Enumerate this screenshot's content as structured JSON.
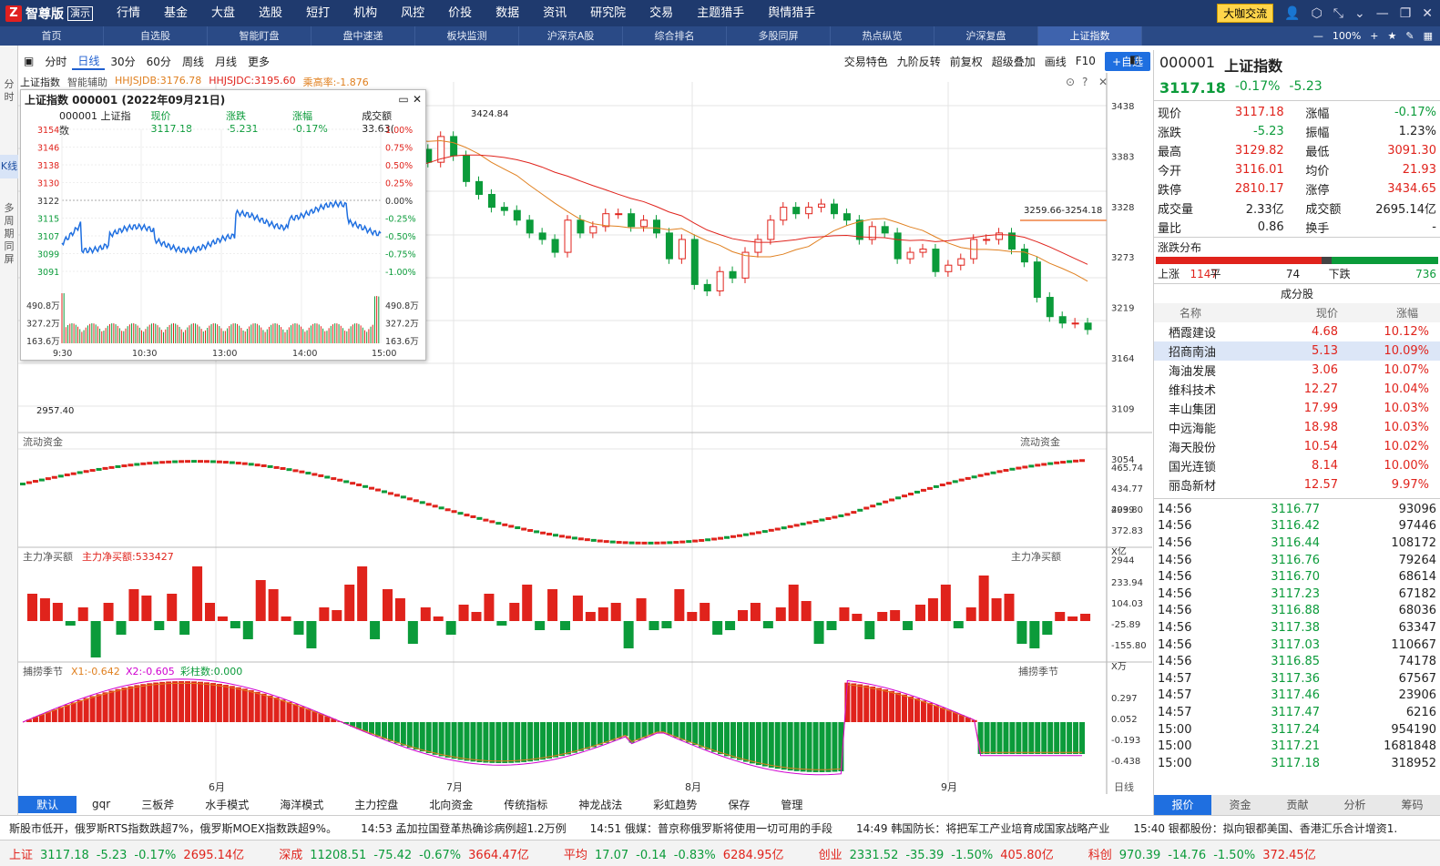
{
  "app": {
    "brand": "智尊版",
    "demo": "演示"
  },
  "menu": [
    "行情",
    "基金",
    "大盘",
    "选股",
    "短打",
    "机构",
    "风控",
    "价投",
    "数据",
    "资讯",
    "研究院",
    "交易",
    "主题猎手",
    "舆情猎手"
  ],
  "topright": {
    "cafe": "大咖交流"
  },
  "tabs": [
    "首页",
    "自选股",
    "智能盯盘",
    "盘中速递",
    "板块监测",
    "沪深京A股",
    "综合排名",
    "多股同屏",
    "热点纵览",
    "沪深复盘",
    "上证指数"
  ],
  "zoom": "100%",
  "sidebar": [
    "分时",
    "K线",
    "多周期同屏"
  ],
  "periods": [
    "分时",
    "日线",
    "30分",
    "60分",
    "周线",
    "月线",
    "更多"
  ],
  "righttools": [
    "交易特色",
    "九阶反转",
    "前复权",
    "超级叠加",
    "画线",
    "F10",
    "+自选"
  ],
  "info": {
    "name": "上证指数",
    "assist": "智能辅助",
    "jdb": "HHJSJDB:3176.78",
    "jdc": "HHJSJDC:3195.60",
    "gao": "乘高率:-1.876"
  },
  "price_axis": [
    "3438",
    "3383",
    "3328",
    "3273",
    "3219",
    "3164",
    "3109",
    "3054",
    "2999",
    "2944"
  ],
  "high_mark": "3424.84",
  "low_mark": "2957.40",
  "range_mark": "3259.66-3254.18",
  "ind1": {
    "title": "流动资金",
    "axis": [
      "465.74",
      "434.77",
      "403.80",
      "372.83",
      "X亿"
    ]
  },
  "ind2": {
    "title": "主力净买额",
    "value": "主力净买额:533427",
    "axis": [
      "233.94",
      "104.03",
      "-25.89",
      "-155.80",
      "X万"
    ]
  },
  "ind3": {
    "title": "捕捞季节",
    "x1": "X1:-0.642",
    "x2": "X2:-0.605",
    "bar": "彩柱数:0.000",
    "axis": [
      "0.297",
      "0.052",
      "-0.193",
      "-0.438"
    ]
  },
  "months": [
    "6月",
    "7月",
    "8月",
    "9月"
  ],
  "daylabel": "日线",
  "popup": {
    "title": "上证指数 000001 (2022年09月21日)",
    "code": "000001 上证指数",
    "now": "现价 3117.18",
    "chg": "涨跌 -5.231",
    "pct": "涨幅 -0.17%",
    "amt": "成交额 33.63(",
    "left_axis": [
      "3154",
      "3146",
      "3138",
      "3130",
      "3122",
      "3115",
      "3107",
      "3099",
      "3091"
    ],
    "right_axis": [
      "1.00%",
      "0.75%",
      "0.50%",
      "0.25%",
      "0.00%",
      "-0.25%",
      "-0.50%",
      "-0.75%",
      "-1.00%"
    ],
    "vol_axis": [
      "490.8万",
      "327.2万",
      "163.6万"
    ],
    "times": [
      "9:30",
      "10:30",
      "13:00",
      "14:00",
      "15:00"
    ]
  },
  "quote": {
    "code": "000001",
    "name": "上证指数",
    "price": "3117.18",
    "pct": "-0.17%",
    "chg": "-5.23",
    "rows": [
      [
        "现价",
        "3117.18",
        "涨幅",
        "-0.17%"
      ],
      [
        "涨跌",
        "-5.23",
        "振幅",
        "1.23%"
      ],
      [
        "最高",
        "3129.82",
        "最低",
        "3091.30"
      ],
      [
        "今开",
        "3116.01",
        "均价",
        "21.93"
      ],
      [
        "跌停",
        "2810.17",
        "涨停",
        "3434.65"
      ],
      [
        "成交量",
        "2.33亿",
        "成交额",
        "2695.14亿"
      ],
      [
        "量比",
        "0.86",
        "换手",
        "-"
      ]
    ],
    "dist_title": "涨跌分布",
    "up_label": "上涨",
    "up": "1147",
    "flat_label": "平",
    "flat": "74",
    "down_label": "下跌",
    "down": "736",
    "comp_title": "成分股",
    "comp_headers": [
      "名称",
      "现价",
      "涨幅"
    ],
    "comps": [
      [
        "栖霞建设",
        "4.68",
        "10.12%"
      ],
      [
        "招商南油",
        "5.13",
        "10.09%"
      ],
      [
        "海油发展",
        "3.06",
        "10.07%"
      ],
      [
        "维科技术",
        "12.27",
        "10.04%"
      ],
      [
        "丰山集团",
        "17.99",
        "10.03%"
      ],
      [
        "中远海能",
        "18.98",
        "10.03%"
      ],
      [
        "海天股份",
        "10.54",
        "10.02%"
      ],
      [
        "国光连锁",
        "8.14",
        "10.00%"
      ],
      [
        "丽岛新材",
        "12.57",
        "9.97%"
      ]
    ],
    "ticks": [
      [
        "14:56",
        "3116.77",
        "93096"
      ],
      [
        "14:56",
        "3116.42",
        "97446"
      ],
      [
        "14:56",
        "3116.44",
        "108172"
      ],
      [
        "14:56",
        "3116.76",
        "79264"
      ],
      [
        "14:56",
        "3116.70",
        "68614"
      ],
      [
        "14:56",
        "3117.23",
        "67182"
      ],
      [
        "14:56",
        "3116.88",
        "68036"
      ],
      [
        "14:56",
        "3117.38",
        "63347"
      ],
      [
        "14:56",
        "3117.03",
        "110667"
      ],
      [
        "14:56",
        "3116.85",
        "74178"
      ],
      [
        "14:57",
        "3117.36",
        "67567"
      ],
      [
        "14:57",
        "3117.46",
        "23906"
      ],
      [
        "14:57",
        "3117.47",
        "6216"
      ],
      [
        "15:00",
        "3117.24",
        "954190"
      ],
      [
        "15:00",
        "3117.21",
        "1681848"
      ],
      [
        "15:00",
        "3117.18",
        "318952"
      ]
    ],
    "bottom_tabs": [
      "报价",
      "资金",
      "贡献",
      "分析",
      "筹码"
    ]
  },
  "bottomtabs": [
    "默认",
    "gqr",
    "三板斧",
    "水手模式",
    "海洋模式",
    "主力控盘",
    "北向资金",
    "传统指标",
    "神龙战法",
    "彩虹趋势",
    "保存",
    "管理"
  ],
  "news": [
    "斯股市低开，俄罗斯RTS指数跌超7%，俄罗斯MOEX指数跌超9%。",
    "14:53 孟加拉国登革热确诊病例超1.2万例",
    "14:51 俄媒：普京称俄罗斯将使用一切可用的手段",
    "14:49 韩国防长：将把军工产业培育成国家战略产业",
    "15:40 银都股份：拟向银都美国、香港汇乐合计增资1."
  ],
  "ticker": [
    [
      "上证",
      "3117.18",
      "-5.23",
      "-0.17%",
      "2695.14亿"
    ],
    [
      "深成",
      "11208.51",
      "-75.42",
      "-0.67%",
      "3664.47亿"
    ],
    [
      "平均",
      "17.07",
      "-0.14",
      "-0.83%",
      "6284.95亿"
    ],
    [
      "创业",
      "2331.52",
      "-35.39",
      "-1.50%",
      "405.80亿"
    ],
    [
      "科创",
      "970.39",
      "-14.76",
      "-1.50%",
      "372.45亿"
    ]
  ],
  "colors": {
    "up": "#e0231c",
    "down": "#0b9b3a",
    "nav": "#1f3a6e"
  }
}
